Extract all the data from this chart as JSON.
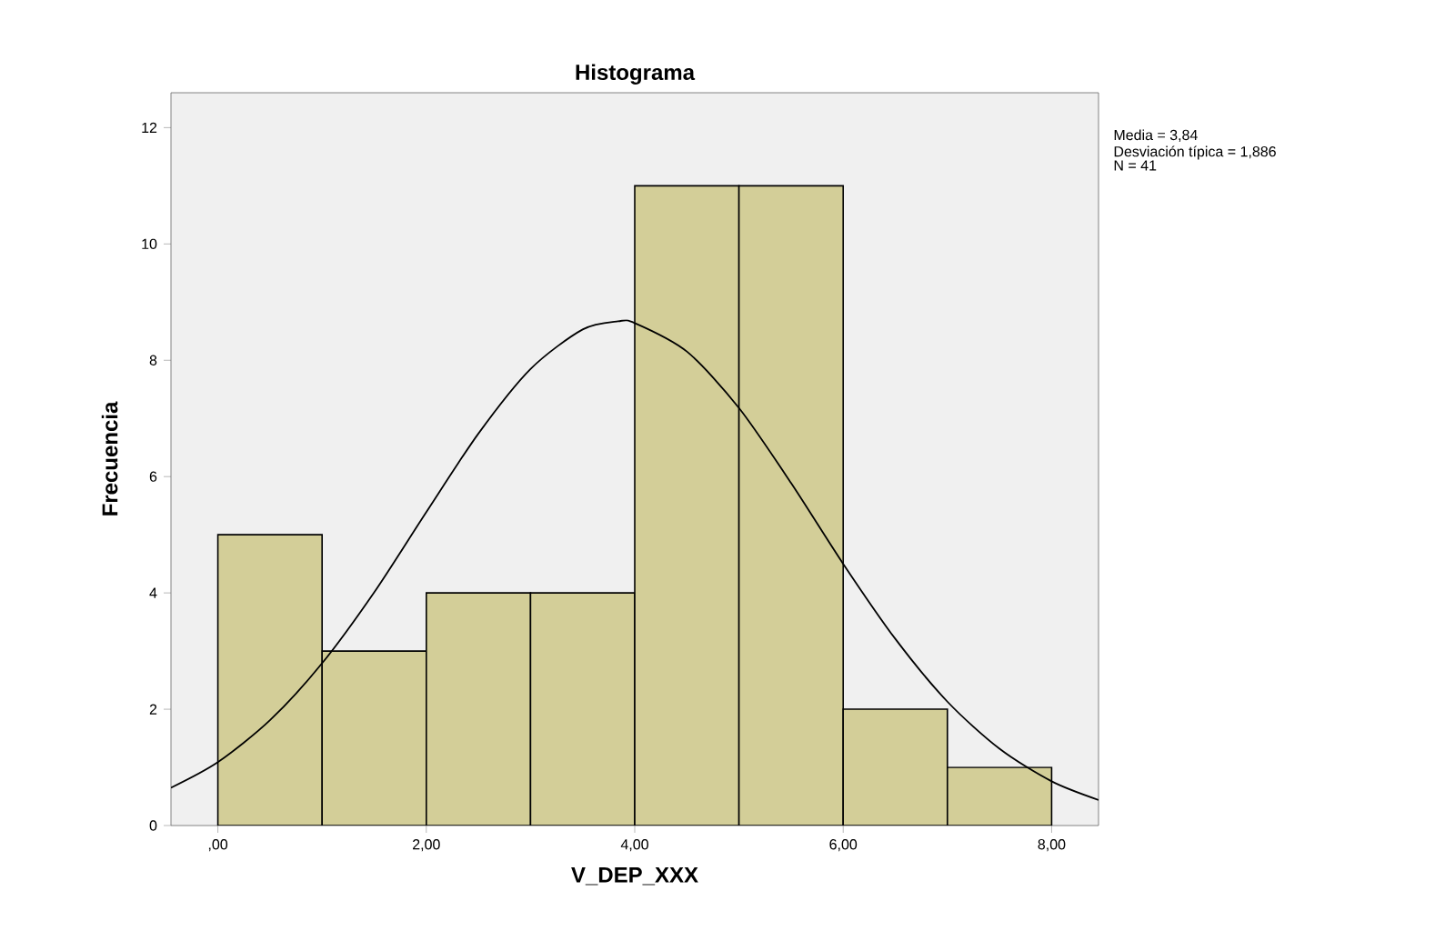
{
  "chart_data": {
    "type": "histogram",
    "title": "Histograma",
    "xlabel": "V_DEP_XXX",
    "ylabel": "Frecuencia",
    "bins": [
      0,
      1,
      2,
      3,
      4,
      5,
      6,
      7,
      8
    ],
    "values": [
      5,
      3,
      4,
      4,
      11,
      11,
      2,
      1
    ],
    "color": "#d3ce98",
    "series": [
      {
        "type": "line",
        "color": "#000000",
        "x": [
          -0.45,
          0,
          0.5,
          1,
          1.5,
          2,
          2.5,
          3,
          3.5,
          3.84,
          4,
          4.5,
          5,
          5.5,
          6,
          6.5,
          7,
          7.5,
          8,
          8.45
        ],
        "values": [
          0.65,
          1.09,
          1.81,
          2.79,
          4.01,
          5.39,
          6.74,
          7.85,
          8.53,
          8.67,
          8.64,
          8.15,
          7.18,
          5.89,
          4.5,
          3.21,
          2.13,
          1.32,
          0.76,
          0.44
        ]
      }
    ],
    "xlim": [
      -0.45,
      8.45
    ],
    "ylim": [
      0,
      12.6
    ],
    "xticks": [
      {
        "value": 0,
        "label": ",00"
      },
      {
        "value": 2,
        "label": "2,00"
      },
      {
        "value": 4,
        "label": "4,00"
      },
      {
        "value": 6,
        "label": "6,00"
      },
      {
        "value": 8,
        "label": "8,00"
      }
    ],
    "yticks": [
      0,
      2,
      4,
      6,
      8,
      10,
      12
    ],
    "annotations": [
      "Media = 3,84",
      "Desviación típica = 1,886",
      "N = 41"
    ]
  }
}
